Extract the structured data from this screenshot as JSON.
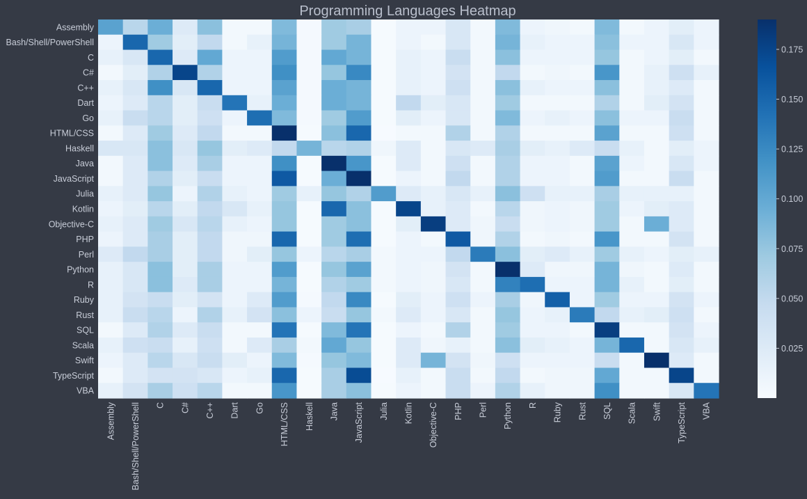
{
  "chart_data": {
    "type": "heatmap",
    "title": "Programming Languages Heatmap",
    "xlabel": "",
    "ylabel": "",
    "rows": [
      "Assembly",
      "Bash/Shell/PowerShell",
      "C",
      "C#",
      "C++",
      "Dart",
      "Go",
      "HTML/CSS",
      "Haskell",
      "Java",
      "JavaScript",
      "Julia",
      "Kotlin",
      "Objective-C",
      "PHP",
      "Perl",
      "Python",
      "R",
      "Ruby",
      "Rust",
      "SQL",
      "Scala",
      "Swift",
      "TypeScript",
      "VBA"
    ],
    "columns": [
      "Assembly",
      "Bash/Shell/PowerShell",
      "C",
      "C#",
      "C++",
      "Dart",
      "Go",
      "HTML/CSS",
      "Haskell",
      "Java",
      "JavaScript",
      "Julia",
      "Kotlin",
      "Objective-C",
      "PHP",
      "Perl",
      "Python",
      "R",
      "Ruby",
      "Rust",
      "SQL",
      "Scala",
      "Swift",
      "TypeScript",
      "VBA"
    ],
    "values": [
      [
        0.105,
        0.055,
        0.095,
        0.025,
        0.08,
        0.005,
        0.005,
        0.085,
        0.003,
        0.07,
        0.065,
        0.002,
        0.01,
        0.01,
        0.03,
        0.005,
        0.085,
        0.01,
        0.008,
        0.005,
        0.085,
        0.005,
        0.01,
        0.02,
        0.01
      ],
      [
        0.01,
        0.15,
        0.07,
        0.02,
        0.05,
        0.005,
        0.015,
        0.09,
        0.003,
        0.07,
        0.09,
        0.002,
        0.01,
        0.005,
        0.03,
        0.005,
        0.09,
        0.015,
        0.01,
        0.01,
        0.08,
        0.01,
        0.01,
        0.03,
        0.01
      ],
      [
        0.015,
        0.03,
        0.15,
        0.025,
        0.1,
        0.01,
        0.01,
        0.11,
        0.003,
        0.1,
        0.09,
        0.002,
        0.015,
        0.01,
        0.045,
        0.005,
        0.08,
        0.01,
        0.01,
        0.01,
        0.075,
        0.005,
        0.01,
        0.02,
        0.005
      ],
      [
        0.005,
        0.02,
        0.06,
        0.175,
        0.06,
        0.01,
        0.01,
        0.12,
        0.003,
        0.075,
        0.125,
        0.002,
        0.015,
        0.01,
        0.035,
        0.005,
        0.05,
        0.005,
        0.008,
        0.005,
        0.115,
        0.005,
        0.015,
        0.04,
        0.015
      ],
      [
        0.015,
        0.03,
        0.12,
        0.03,
        0.15,
        0.01,
        0.01,
        0.105,
        0.003,
        0.095,
        0.09,
        0.002,
        0.015,
        0.01,
        0.04,
        0.005,
        0.08,
        0.015,
        0.01,
        0.01,
        0.08,
        0.005,
        0.015,
        0.025,
        0.005
      ],
      [
        0.01,
        0.025,
        0.055,
        0.02,
        0.045,
        0.14,
        0.015,
        0.095,
        0.003,
        0.095,
        0.09,
        0.002,
        0.05,
        0.02,
        0.03,
        0.005,
        0.07,
        0.005,
        0.005,
        0.005,
        0.06,
        0.005,
        0.02,
        0.035,
        0.005
      ],
      [
        0.015,
        0.045,
        0.055,
        0.02,
        0.04,
        0.01,
        0.145,
        0.085,
        0.003,
        0.07,
        0.11,
        0.002,
        0.02,
        0.01,
        0.03,
        0.005,
        0.085,
        0.01,
        0.015,
        0.01,
        0.08,
        0.01,
        0.01,
        0.045,
        0.005
      ],
      [
        0.005,
        0.025,
        0.07,
        0.025,
        0.05,
        0.005,
        0.005,
        0.195,
        0.002,
        0.08,
        0.15,
        0.001,
        0.005,
        0.005,
        0.06,
        0.005,
        0.06,
        0.005,
        0.005,
        0.005,
        0.105,
        0.005,
        0.005,
        0.04,
        0.005
      ],
      [
        0.03,
        0.03,
        0.08,
        0.03,
        0.075,
        0.02,
        0.025,
        0.05,
        0.09,
        0.055,
        0.06,
        0.008,
        0.025,
        0.005,
        0.03,
        0.025,
        0.065,
        0.02,
        0.015,
        0.025,
        0.045,
        0.015,
        0.005,
        0.02,
        0.01
      ],
      [
        0.005,
        0.025,
        0.08,
        0.025,
        0.065,
        0.01,
        0.01,
        0.12,
        0.002,
        0.19,
        0.115,
        0.002,
        0.025,
        0.005,
        0.04,
        0.005,
        0.06,
        0.01,
        0.01,
        0.005,
        0.105,
        0.01,
        0.005,
        0.03,
        0.01
      ],
      [
        0.005,
        0.025,
        0.06,
        0.02,
        0.045,
        0.01,
        0.01,
        0.16,
        0.002,
        0.095,
        0.195,
        0.002,
        0.01,
        0.005,
        0.05,
        0.005,
        0.06,
        0.01,
        0.01,
        0.005,
        0.11,
        0.005,
        0.005,
        0.045,
        0.005
      ],
      [
        0.015,
        0.025,
        0.075,
        0.01,
        0.06,
        0.015,
        0.01,
        0.07,
        0.015,
        0.075,
        0.06,
        0.11,
        0.025,
        0.015,
        0.03,
        0.015,
        0.08,
        0.04,
        0.015,
        0.015,
        0.065,
        0.015,
        0.015,
        0.015,
        0.005
      ],
      [
        0.01,
        0.02,
        0.055,
        0.02,
        0.05,
        0.03,
        0.015,
        0.075,
        0.002,
        0.15,
        0.08,
        0.002,
        0.175,
        0.015,
        0.025,
        0.005,
        0.055,
        0.008,
        0.01,
        0.008,
        0.07,
        0.01,
        0.02,
        0.025,
        0.005
      ],
      [
        0.015,
        0.025,
        0.07,
        0.03,
        0.055,
        0.015,
        0.01,
        0.075,
        0.002,
        0.07,
        0.08,
        0.002,
        0.02,
        0.18,
        0.025,
        0.008,
        0.045,
        0.008,
        0.01,
        0.008,
        0.07,
        0.005,
        0.095,
        0.025,
        0.005
      ],
      [
        0.01,
        0.025,
        0.065,
        0.02,
        0.05,
        0.008,
        0.008,
        0.15,
        0.002,
        0.07,
        0.145,
        0.002,
        0.01,
        0.005,
        0.16,
        0.008,
        0.06,
        0.005,
        0.008,
        0.005,
        0.115,
        0.005,
        0.005,
        0.035,
        0.005
      ],
      [
        0.025,
        0.05,
        0.065,
        0.02,
        0.05,
        0.008,
        0.02,
        0.075,
        0.01,
        0.055,
        0.065,
        0.005,
        0.01,
        0.01,
        0.05,
        0.135,
        0.08,
        0.02,
        0.025,
        0.015,
        0.07,
        0.015,
        0.01,
        0.02,
        0.015
      ],
      [
        0.015,
        0.03,
        0.08,
        0.02,
        0.065,
        0.01,
        0.01,
        0.11,
        0.002,
        0.075,
        0.105,
        0.005,
        0.01,
        0.008,
        0.035,
        0.005,
        0.19,
        0.025,
        0.008,
        0.008,
        0.09,
        0.008,
        0.005,
        0.025,
        0.005
      ],
      [
        0.015,
        0.03,
        0.08,
        0.025,
        0.065,
        0.01,
        0.01,
        0.09,
        0.002,
        0.06,
        0.07,
        0.005,
        0.01,
        0.008,
        0.03,
        0.005,
        0.13,
        0.145,
        0.01,
        0.01,
        0.09,
        0.015,
        0.005,
        0.02,
        0.005
      ],
      [
        0.015,
        0.035,
        0.045,
        0.02,
        0.035,
        0.01,
        0.025,
        0.11,
        0.003,
        0.05,
        0.125,
        0.002,
        0.02,
        0.01,
        0.04,
        0.01,
        0.065,
        0.008,
        0.155,
        0.01,
        0.07,
        0.01,
        0.01,
        0.035,
        0.01
      ],
      [
        0.015,
        0.045,
        0.055,
        0.01,
        0.06,
        0.015,
        0.035,
        0.08,
        0.01,
        0.045,
        0.075,
        0.005,
        0.025,
        0.01,
        0.03,
        0.005,
        0.075,
        0.01,
        0.015,
        0.135,
        0.05,
        0.015,
        0.02,
        0.04,
        0.005
      ],
      [
        0.005,
        0.025,
        0.06,
        0.025,
        0.045,
        0.005,
        0.005,
        0.14,
        0.002,
        0.085,
        0.14,
        0.002,
        0.01,
        0.005,
        0.06,
        0.005,
        0.07,
        0.01,
        0.01,
        0.005,
        0.18,
        0.005,
        0.005,
        0.035,
        0.01
      ],
      [
        0.015,
        0.04,
        0.045,
        0.015,
        0.04,
        0.005,
        0.025,
        0.065,
        0.005,
        0.1,
        0.075,
        0.002,
        0.025,
        0.008,
        0.015,
        0.005,
        0.08,
        0.02,
        0.015,
        0.01,
        0.09,
        0.15,
        0.005,
        0.03,
        0.015
      ],
      [
        0.01,
        0.025,
        0.055,
        0.03,
        0.045,
        0.02,
        0.01,
        0.085,
        0.003,
        0.075,
        0.085,
        0.002,
        0.025,
        0.09,
        0.035,
        0.008,
        0.04,
        0.01,
        0.01,
        0.01,
        0.045,
        0.005,
        0.195,
        0.025,
        0.005
      ],
      [
        0.005,
        0.025,
        0.035,
        0.035,
        0.03,
        0.01,
        0.015,
        0.15,
        0.002,
        0.065,
        0.17,
        0.001,
        0.015,
        0.005,
        0.045,
        0.005,
        0.05,
        0.005,
        0.008,
        0.008,
        0.1,
        0.005,
        0.005,
        0.175,
        0.005
      ],
      [
        0.015,
        0.035,
        0.065,
        0.04,
        0.055,
        0.005,
        0.005,
        0.115,
        0.002,
        0.065,
        0.08,
        0.002,
        0.01,
        0.005,
        0.045,
        0.01,
        0.06,
        0.015,
        0.008,
        0.008,
        0.12,
        0.005,
        0.005,
        0.03,
        0.14
      ]
    ],
    "colorbar": {
      "min": 0.0,
      "max": 0.19,
      "ticks": [
        0.025,
        0.05,
        0.075,
        0.1,
        0.125,
        0.15,
        0.175
      ],
      "tick_labels": [
        "0.025",
        "0.050",
        "0.075",
        "0.100",
        "0.125",
        "0.150",
        "0.175"
      ],
      "colormap": "Blues"
    },
    "grid": false,
    "legend": "colorbar-right"
  },
  "colors": {
    "background": "#353a45",
    "text": "#c8cdd8",
    "title": "#b9bfcc"
  }
}
